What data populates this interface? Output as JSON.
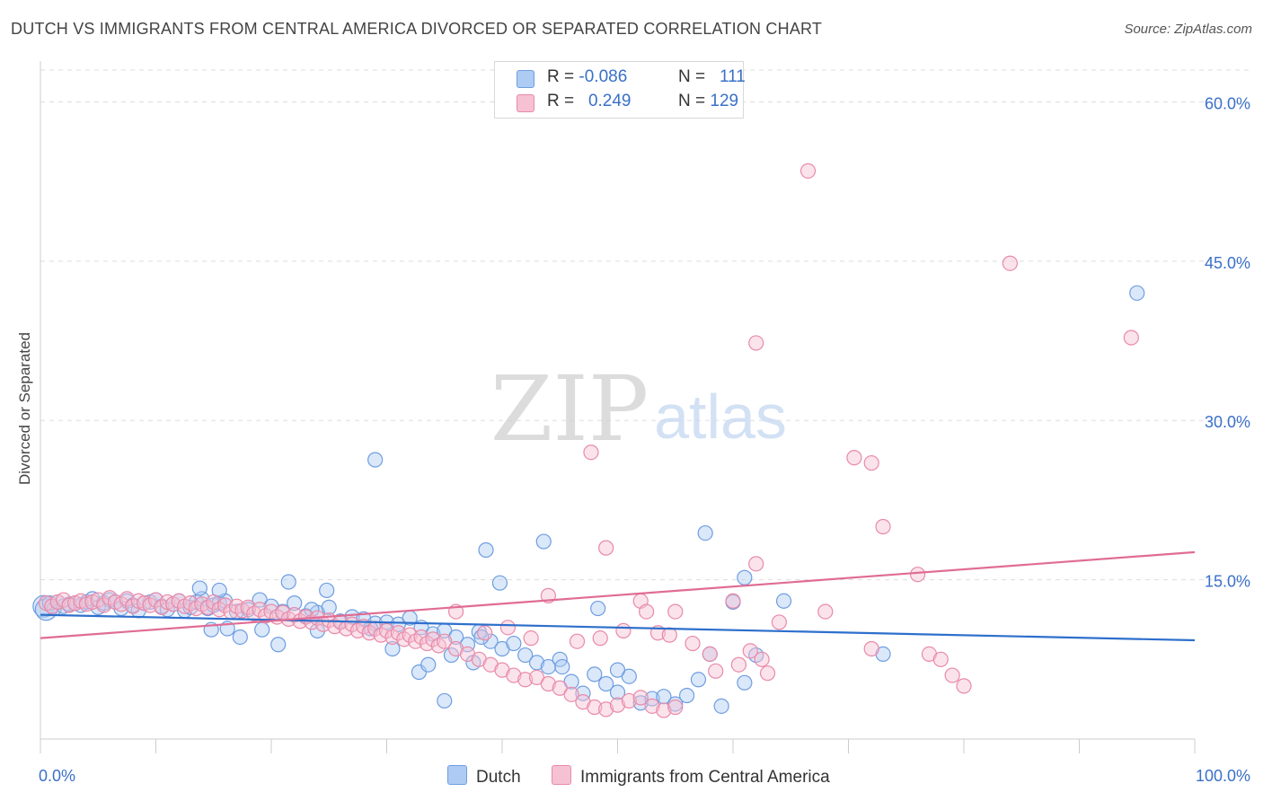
{
  "header": {
    "title": "DUTCH VS IMMIGRANTS FROM CENTRAL AMERICA DIVORCED OR SEPARATED CORRELATION CHART",
    "source": "Source: ZipAtlas.com"
  },
  "watermark": {
    "zip": "ZIP",
    "atlas": "atlas"
  },
  "colors": {
    "dutch_fill": "#aecbf3",
    "dutch_stroke": "#6f9de0",
    "dutch_line": "#2e6fcc",
    "ca_fill": "#f6c1d2",
    "ca_stroke": "#e88aa9",
    "ca_line": "#e06c95",
    "axis_text": "#3a70c8",
    "grid": "#dddddd"
  },
  "legend": {
    "rows": [
      {
        "r_label": "R =",
        "r_value": "-0.086",
        "n_label": "N =",
        "n_value": "111"
      },
      {
        "r_label": "R =",
        "r_value": "0.249",
        "n_label": "N =",
        "n_value": "129"
      }
    ]
  },
  "chart_data": {
    "type": "scatter",
    "title": "DUTCH VS IMMIGRANTS FROM CENTRAL AMERICA DIVORCED OR SEPARATED CORRELATION CHART",
    "xlabel": "",
    "ylabel": "Divorced or Separated",
    "xlim": [
      0,
      100
    ],
    "ylim": [
      0,
      63
    ],
    "x_tick_labels": [
      "0.0%",
      "100.0%"
    ],
    "y_ticks": [
      15,
      30,
      45,
      60
    ],
    "y_tick_labels": [
      "15.0%",
      "30.0%",
      "45.0%",
      "60.0%"
    ],
    "grid": true,
    "legend": [
      "Dutch",
      "Immigrants from Central America"
    ],
    "series": [
      {
        "name": "Dutch",
        "trend": {
          "x": [
            0,
            100
          ],
          "y": [
            11.7,
            9.3
          ]
        },
        "points": [
          [
            0.3,
            12.5
          ],
          [
            0.5,
            12.2
          ],
          [
            0.8,
            12.8
          ],
          [
            1.2,
            12.3
          ],
          [
            1.5,
            12.9
          ],
          [
            2.0,
            12.5
          ],
          [
            2.5,
            12.7
          ],
          [
            3.0,
            12.8
          ],
          [
            3.5,
            12.6
          ],
          [
            4.0,
            12.9
          ],
          [
            4.5,
            13.2
          ],
          [
            5.0,
            12.4
          ],
          [
            5.5,
            12.8
          ],
          [
            6.0,
            13.1
          ],
          [
            6.5,
            12.9
          ],
          [
            7.0,
            12.3
          ],
          [
            7.5,
            13.0
          ],
          [
            8.0,
            12.6
          ],
          [
            8.5,
            12.1
          ],
          [
            9.0,
            12.8
          ],
          [
            9.5,
            12.9
          ],
          [
            10.0,
            13.1
          ],
          [
            10.5,
            12.5
          ],
          [
            11.0,
            12.2
          ],
          [
            11.5,
            12.7
          ],
          [
            12.0,
            13.0
          ],
          [
            12.5,
            12.1
          ],
          [
            13.0,
            12.4
          ],
          [
            13.5,
            12.9
          ],
          [
            14.0,
            13.2
          ],
          [
            14.5,
            12.3
          ],
          [
            15.0,
            12.6
          ],
          [
            15.5,
            12.8
          ],
          [
            16.0,
            13.0
          ],
          [
            17.0,
            12.0
          ],
          [
            18.0,
            12.2
          ],
          [
            19.0,
            13.1
          ],
          [
            20.0,
            12.5
          ],
          [
            21.0,
            12.0
          ],
          [
            22.0,
            12.8
          ],
          [
            23.0,
            11.6
          ],
          [
            24.0,
            11.9
          ],
          [
            25.0,
            12.4
          ],
          [
            26.0,
            11.1
          ],
          [
            27.0,
            11.5
          ],
          [
            28.0,
            11.3
          ],
          [
            29.0,
            10.9
          ],
          [
            30.0,
            11.0
          ],
          [
            31.0,
            10.8
          ],
          [
            32.0,
            11.4
          ],
          [
            33.0,
            10.5
          ],
          [
            34.0,
            9.9
          ],
          [
            35.0,
            10.2
          ],
          [
            36.0,
            9.6
          ],
          [
            37.0,
            8.9
          ],
          [
            38.0,
            10.1
          ],
          [
            39.0,
            9.2
          ],
          [
            40.0,
            8.5
          ],
          [
            41.0,
            9.0
          ],
          [
            42.0,
            7.9
          ],
          [
            43.0,
            7.2
          ],
          [
            44.0,
            6.8
          ],
          [
            45.0,
            7.5
          ],
          [
            46.0,
            5.4
          ],
          [
            47.0,
            4.3
          ],
          [
            48.0,
            6.1
          ],
          [
            49.0,
            5.2
          ],
          [
            50.0,
            4.4
          ],
          [
            51.0,
            5.9
          ],
          [
            52.0,
            3.4
          ],
          [
            53.0,
            3.8
          ],
          [
            54.0,
            4.0
          ],
          [
            55.0,
            3.3
          ],
          [
            56.0,
            4.1
          ],
          [
            57.0,
            5.6
          ],
          [
            58.0,
            8.0
          ],
          [
            59.0,
            3.1
          ],
          [
            60.0,
            12.9
          ],
          [
            61.0,
            5.3
          ],
          [
            62.0,
            7.9
          ],
          [
            15.5,
            14.0
          ],
          [
            13.8,
            14.2
          ],
          [
            21.5,
            14.8
          ],
          [
            24.8,
            14.0
          ],
          [
            23.5,
            12.2
          ],
          [
            14.8,
            10.3
          ],
          [
            16.2,
            10.4
          ],
          [
            17.3,
            9.6
          ],
          [
            19.2,
            10.3
          ],
          [
            20.6,
            8.9
          ],
          [
            24.0,
            10.2
          ],
          [
            28.6,
            10.4
          ],
          [
            30.5,
            8.5
          ],
          [
            32.8,
            6.3
          ],
          [
            33.6,
            7.0
          ],
          [
            35.6,
            7.9
          ],
          [
            37.5,
            7.2
          ],
          [
            35.0,
            3.6
          ],
          [
            39.8,
            14.7
          ],
          [
            38.6,
            17.8
          ],
          [
            43.6,
            18.6
          ],
          [
            48.3,
            12.3
          ],
          [
            57.6,
            19.4
          ],
          [
            61.0,
            15.2
          ],
          [
            64.4,
            13.0
          ],
          [
            73.0,
            8.0
          ],
          [
            95.0,
            42.0
          ],
          [
            38.2,
            9.6
          ],
          [
            45.2,
            6.8
          ],
          [
            50.0,
            6.5
          ],
          [
            29.0,
            26.3
          ]
        ]
      },
      {
        "name": "Immigrants from Central America",
        "trend": {
          "x": [
            0,
            100
          ],
          "y": [
            9.5,
            17.6
          ]
        },
        "points": [
          [
            0.5,
            12.8
          ],
          [
            1.0,
            12.5
          ],
          [
            1.5,
            12.9
          ],
          [
            2.0,
            13.1
          ],
          [
            2.5,
            12.6
          ],
          [
            3.0,
            12.8
          ],
          [
            3.5,
            13.0
          ],
          [
            4.0,
            12.7
          ],
          [
            4.5,
            12.9
          ],
          [
            5.0,
            13.1
          ],
          [
            5.5,
            12.6
          ],
          [
            6.0,
            13.3
          ],
          [
            6.5,
            12.9
          ],
          [
            7.0,
            12.7
          ],
          [
            7.5,
            13.2
          ],
          [
            8.0,
            12.5
          ],
          [
            8.5,
            13.0
          ],
          [
            9.0,
            12.8
          ],
          [
            9.5,
            12.6
          ],
          [
            10.0,
            13.1
          ],
          [
            10.5,
            12.4
          ],
          [
            11.0,
            12.9
          ],
          [
            11.5,
            12.7
          ],
          [
            12.0,
            13.0
          ],
          [
            12.5,
            12.5
          ],
          [
            13.0,
            12.8
          ],
          [
            13.5,
            12.3
          ],
          [
            14.0,
            12.7
          ],
          [
            14.5,
            12.4
          ],
          [
            15.0,
            12.9
          ],
          [
            15.5,
            12.2
          ],
          [
            16.0,
            12.6
          ],
          [
            16.5,
            12.0
          ],
          [
            17.0,
            12.5
          ],
          [
            17.5,
            12.1
          ],
          [
            18.0,
            12.4
          ],
          [
            18.5,
            11.8
          ],
          [
            19.0,
            12.2
          ],
          [
            19.5,
            11.6
          ],
          [
            20.0,
            12.0
          ],
          [
            20.5,
            11.5
          ],
          [
            21.0,
            11.9
          ],
          [
            21.5,
            11.3
          ],
          [
            22.0,
            11.7
          ],
          [
            22.5,
            11.1
          ],
          [
            23.0,
            11.5
          ],
          [
            23.5,
            11.0
          ],
          [
            24.0,
            11.4
          ],
          [
            24.5,
            10.8
          ],
          [
            25.0,
            11.2
          ],
          [
            25.5,
            10.6
          ],
          [
            26.0,
            11.0
          ],
          [
            26.5,
            10.4
          ],
          [
            27.0,
            10.8
          ],
          [
            27.5,
            10.2
          ],
          [
            28.0,
            10.6
          ],
          [
            28.5,
            10.0
          ],
          [
            29.0,
            10.4
          ],
          [
            29.5,
            9.8
          ],
          [
            30.0,
            10.2
          ],
          [
            30.5,
            9.6
          ],
          [
            31.0,
            10.0
          ],
          [
            31.5,
            9.4
          ],
          [
            32.0,
            9.8
          ],
          [
            32.5,
            9.2
          ],
          [
            33.0,
            9.6
          ],
          [
            33.5,
            9.0
          ],
          [
            34.0,
            9.4
          ],
          [
            34.5,
            8.8
          ],
          [
            35.0,
            9.2
          ],
          [
            36.0,
            8.5
          ],
          [
            37.0,
            8.0
          ],
          [
            38.0,
            7.5
          ],
          [
            39.0,
            7.0
          ],
          [
            40.0,
            6.5
          ],
          [
            41.0,
            6.0
          ],
          [
            42.0,
            5.6
          ],
          [
            43.0,
            5.8
          ],
          [
            44.0,
            5.2
          ],
          [
            45.0,
            4.8
          ],
          [
            46.0,
            4.2
          ],
          [
            47.0,
            3.5
          ],
          [
            48.0,
            3.0
          ],
          [
            49.0,
            2.8
          ],
          [
            50.0,
            3.2
          ],
          [
            51.0,
            3.6
          ],
          [
            52.0,
            3.9
          ],
          [
            53.0,
            3.1
          ],
          [
            54.0,
            2.7
          ],
          [
            55.0,
            3.0
          ],
          [
            47.7,
            27.0
          ],
          [
            49.0,
            18.0
          ],
          [
            52.0,
            13.0
          ],
          [
            55.0,
            12.0
          ],
          [
            58.0,
            8.0
          ],
          [
            60.0,
            13.0
          ],
          [
            62.0,
            16.5
          ],
          [
            64.0,
            11.0
          ],
          [
            68.0,
            12.0
          ],
          [
            72.0,
            8.5
          ],
          [
            73.0,
            20.0
          ],
          [
            76.0,
            15.5
          ],
          [
            70.5,
            26.5
          ],
          [
            72.0,
            26.0
          ],
          [
            77.0,
            8.0
          ],
          [
            78.0,
            7.5
          ],
          [
            79.0,
            6.0
          ],
          [
            80.0,
            5.0
          ],
          [
            66.5,
            53.5
          ],
          [
            84.0,
            44.8
          ],
          [
            94.5,
            37.8
          ],
          [
            62.0,
            37.3
          ],
          [
            36.0,
            12.0
          ],
          [
            44.0,
            13.5
          ],
          [
            42.5,
            9.5
          ],
          [
            46.5,
            9.2
          ],
          [
            38.5,
            10.0
          ],
          [
            40.5,
            10.5
          ],
          [
            48.5,
            9.5
          ],
          [
            50.5,
            10.2
          ],
          [
            53.5,
            10.0
          ],
          [
            56.5,
            9.0
          ],
          [
            58.5,
            6.4
          ],
          [
            60.5,
            7.0
          ],
          [
            62.5,
            7.5
          ],
          [
            63.0,
            6.2
          ],
          [
            61.5,
            8.3
          ],
          [
            54.5,
            9.8
          ],
          [
            52.5,
            12.0
          ]
        ]
      }
    ]
  }
}
